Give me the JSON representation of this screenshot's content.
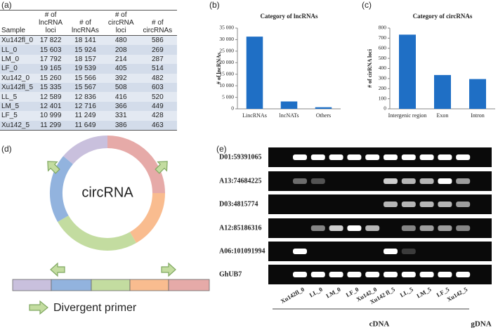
{
  "table": {
    "panel": "(a)",
    "header": [
      "Sample",
      "# of\nlncRNA loci",
      "# of lncRNAs",
      "# of\ncircRNA loci",
      "# of circRNAs"
    ],
    "rows": [
      [
        "Xu142fl_0",
        "17 822",
        "18 141",
        "480",
        "586"
      ],
      [
        "LL_0",
        "15 603",
        "15 924",
        "208",
        "269"
      ],
      [
        "LM_0",
        "17 792",
        "18 157",
        "214",
        "287"
      ],
      [
        "LF_0",
        "19 165",
        "19 539",
        "405",
        "514"
      ],
      [
        "Xu142_0",
        "15 260",
        "15 566",
        "392",
        "482"
      ],
      [
        "Xu142fl_5",
        "15 335",
        "15 567",
        "508",
        "603"
      ],
      [
        "LL_5",
        "12 589",
        "12 836",
        "416",
        "520"
      ],
      [
        "LM_5",
        "12 401",
        "12 716",
        "366",
        "449"
      ],
      [
        "LF_5",
        "10 999",
        "11 249",
        "331",
        "428"
      ],
      [
        "Xu142_5",
        "11 299",
        "11 649",
        "386",
        "463"
      ]
    ]
  },
  "chart_data": [
    {
      "type": "bar",
      "panel": "(b)",
      "title": "Category of lncRNAs",
      "ylabel": "# of lncRNAs",
      "categories": [
        "LincRNAs",
        "lncNATs",
        "Others"
      ],
      "values": [
        31300,
        3200,
        700
      ],
      "color": "#1f6fc5",
      "ylim": [
        0,
        35000
      ],
      "yticks": [
        0,
        {
          "value": 5000,
          "label": "5 000"
        },
        {
          "value": 10000,
          "label": "10 000"
        },
        {
          "value": 15000,
          "label": "15 000"
        },
        {
          "value": 20000,
          "label": "20 000"
        },
        {
          "value": 25000,
          "label": "25 000"
        },
        {
          "value": 30000,
          "label": "30 000"
        },
        {
          "value": 35000,
          "label": "35 000"
        }
      ],
      "grid": false
    },
    {
      "type": "bar",
      "panel": "(c)",
      "title": "Category of circRNAs",
      "ylabel": "# of cirRNA loci",
      "categories": [
        "Intergenic region",
        "Exon",
        "Intron"
      ],
      "values": [
        735,
        335,
        295
      ],
      "color": "#1f6fc5",
      "ylim": [
        0,
        800
      ],
      "yticks": [
        0,
        100,
        200,
        300,
        400,
        500,
        600,
        700,
        800
      ],
      "grid": false
    }
  ],
  "diagram": {
    "panel": "(d)",
    "center": "circRNA",
    "legend": "Divergent primer"
  },
  "gel": {
    "panel": "(e)",
    "rows": [
      "D01:59391065",
      "A13:74684225",
      "D03:4815774",
      "A12:85186316",
      "A06:101091994",
      "GhUB7"
    ],
    "lanes": [
      "Xu142fl_0",
      "LL_0",
      "LM_0",
      "LF_0",
      "Xu142_0",
      "Xu142 fl_5",
      "LL_5",
      "LM_5",
      "LF_5",
      "Xu142_5"
    ],
    "cdna": "cDNA",
    "gdna": "gDNA"
  }
}
